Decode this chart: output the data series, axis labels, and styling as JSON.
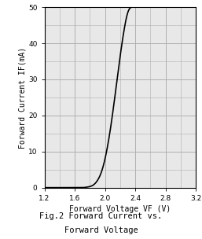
{
  "title_line1": "Fig.2 Forward Current vs.",
  "title_line2": "Forward Voltage",
  "xlabel": "Forward Voltage VF (V)",
  "ylabel": "Forward Current IF(mA)",
  "xlim": [
    1.2,
    3.2
  ],
  "ylim": [
    0,
    50
  ],
  "xticks_major": [
    1.2,
    1.6,
    2.0,
    2.4,
    2.8,
    3.2
  ],
  "yticks_major": [
    0,
    10,
    20,
    30,
    40,
    50
  ],
  "xticks_minor": [
    1.4,
    1.8,
    2.2,
    2.6,
    3.0
  ],
  "yticks_minor": [
    5,
    15,
    25,
    35,
    45
  ],
  "grid_color": "#b0b0b0",
  "curve_color": "#000000",
  "bg_color": "#e8e8e8",
  "curve_x": [
    1.2,
    1.4,
    1.6,
    1.65,
    1.7,
    1.75,
    1.8,
    1.85,
    1.9,
    1.95,
    2.0,
    2.05,
    2.1,
    2.15,
    2.2,
    2.25,
    2.3,
    2.35,
    2.4
  ],
  "curve_y": [
    0,
    0,
    0,
    0,
    0,
    0.1,
    0.3,
    0.8,
    2.0,
    4.2,
    8.0,
    13.5,
    20.5,
    28.5,
    36.5,
    43.5,
    48.5,
    50.0,
    50.0
  ]
}
